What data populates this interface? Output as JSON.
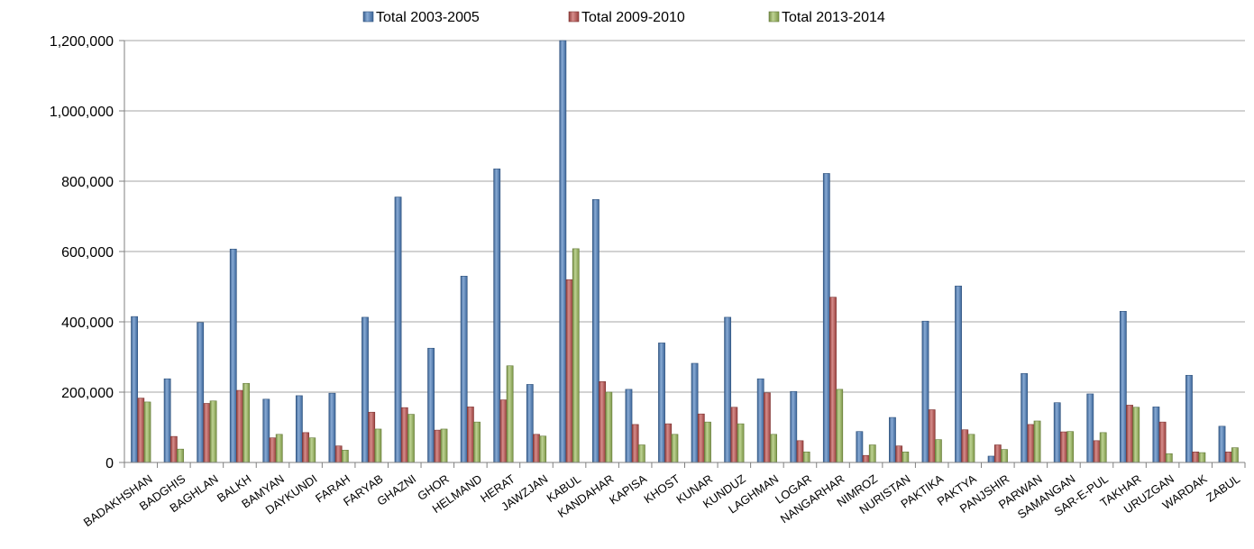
{
  "legend": {
    "placement": "top",
    "items": [
      {
        "label": "Total 2003-2005",
        "color": "#4a7ebf"
      },
      {
        "label": "Total 2009-2010",
        "color": "#c0504d"
      },
      {
        "label": "Total 2013-2014",
        "color": "#9bbb59"
      }
    ]
  },
  "chart_data": {
    "type": "bar",
    "title": "",
    "xlabel": "",
    "ylabel": "",
    "ylim": [
      0,
      1200000
    ],
    "yticks": [
      0,
      200000,
      400000,
      600000,
      800000,
      1000000,
      1200000
    ],
    "ytick_labels": [
      "0",
      "200,000",
      "400,000",
      "600,000",
      "800,000",
      "1,000,000",
      "1,200,000"
    ],
    "grid": true,
    "categories": [
      "BADAKHSHAN",
      "BADGHIS",
      "BAGHLAN",
      "BALKH",
      "BAMYAN",
      "DAYKUNDI",
      "FARAH",
      "FARYAB",
      "GHAZNI",
      "GHOR",
      "HELMAND",
      "HERAT",
      "JAWZJAN",
      "KABUL",
      "KANDAHAR",
      "KAPISA",
      "KHOST",
      "KUNAR",
      "KUNDUZ",
      "LAGHMAN",
      "LOGAR",
      "NANGARHAR",
      "NIMROZ",
      "NURISTAN",
      "PAKTIKA",
      "PAKTYA",
      "PANJSHIR",
      "PARWAN",
      "SAMANGAN",
      "SAR-E-PUL",
      "TAKHAR",
      "URUZGAN",
      "WARDAK",
      "ZABUL"
    ],
    "series": [
      {
        "name": "Total 2003-2005",
        "color": "#4a7ebf",
        "values": [
          415000,
          238000,
          398000,
          607000,
          180000,
          190000,
          197000,
          413000,
          755000,
          325000,
          530000,
          835000,
          222000,
          1200000,
          748000,
          208000,
          340000,
          282000,
          413000,
          238000,
          202000,
          822000,
          88000,
          128000,
          402000,
          502000,
          18000,
          253000,
          170000,
          195000,
          430000,
          158000,
          248000,
          103000
        ]
      },
      {
        "name": "Total 2009-2010",
        "color": "#c0504d",
        "values": [
          183000,
          74000,
          168000,
          205000,
          70000,
          85000,
          47000,
          143000,
          156000,
          92000,
          158000,
          178000,
          80000,
          520000,
          230000,
          108000,
          110000,
          138000,
          157000,
          198000,
          62000,
          470000,
          20000,
          47000,
          150000,
          93000,
          50000,
          108000,
          87000,
          62000,
          163000,
          115000,
          30000,
          30000
        ]
      },
      {
        "name": "Total 2013-2014",
        "color": "#9bbb59",
        "values": [
          172000,
          38000,
          175000,
          225000,
          80000,
          70000,
          35000,
          95000,
          137000,
          95000,
          115000,
          275000,
          75000,
          608000,
          200000,
          50000,
          80000,
          115000,
          110000,
          80000,
          30000,
          208000,
          50000,
          30000,
          65000,
          80000,
          37000,
          118000,
          88000,
          85000,
          157000,
          25000,
          28000,
          42000
        ]
      }
    ]
  }
}
